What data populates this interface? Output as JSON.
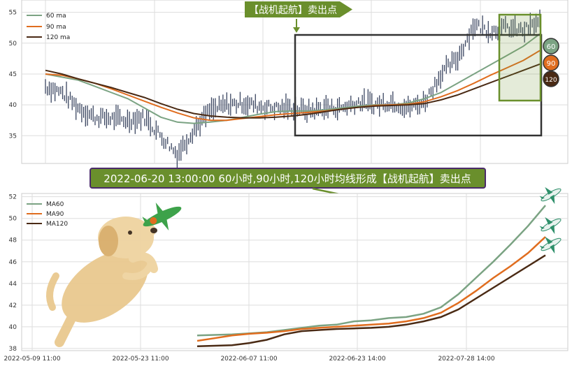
{
  "banner_top": "【战机起航】卖出点",
  "banner_mid": "2022-06-20 13:00:00 60小时,90小时,120小时均线形成【战机起航】卖出点",
  "colors": {
    "ma60": "#7ba383",
    "ma90": "#e06d1f",
    "ma120": "#4a2a14",
    "candle": "#3a4560",
    "green": "#6a8f2c",
    "box": "#333333"
  },
  "chart_data": [
    {
      "type": "line",
      "panel": "top",
      "legend": [
        "60 ma",
        "90 ma",
        "120 ma"
      ],
      "badges": [
        "60",
        "90",
        "120"
      ],
      "yticks": [
        35,
        40,
        45,
        50,
        55
      ],
      "ylim": [
        30.5,
        57
      ],
      "x": [
        0,
        25,
        50,
        75,
        100,
        125,
        150,
        175,
        200,
        225,
        250,
        275,
        300,
        325,
        350,
        375,
        400,
        425,
        450,
        475,
        500,
        525,
        550,
        575,
        600,
        625,
        650,
        675,
        700,
        725,
        750
      ],
      "series": [
        {
          "name": "60 ma",
          "values": [
            45.0,
            44.5,
            44.0,
            43.0,
            42.0,
            41.0,
            39.5,
            38.0,
            37.2,
            37.0,
            37.2,
            37.5,
            38.0,
            38.5,
            38.9,
            39.0,
            39.0,
            39.2,
            39.5,
            39.8,
            40.0,
            40.0,
            40.3,
            41.0,
            42.0,
            43.5,
            45.0,
            46.5,
            48.0,
            49.5,
            51.5
          ]
        },
        {
          "name": "90 ma",
          "values": [
            45.0,
            44.8,
            44.2,
            43.5,
            42.6,
            41.6,
            40.6,
            39.6,
            38.7,
            37.9,
            37.5,
            37.5,
            37.8,
            38.1,
            38.4,
            38.6,
            38.8,
            39.0,
            39.3,
            39.6,
            39.9,
            40.0,
            40.1,
            40.5,
            41.3,
            42.3,
            43.5,
            44.8,
            46.0,
            47.2,
            48.8
          ]
        },
        {
          "name": "120 ma",
          "values": [
            45.6,
            45.0,
            44.2,
            43.5,
            42.8,
            42.0,
            41.2,
            40.2,
            39.3,
            38.6,
            38.2,
            38.0,
            37.9,
            37.9,
            38.0,
            38.2,
            38.5,
            38.9,
            39.3,
            39.6,
            39.8,
            39.9,
            40.0,
            40.2,
            40.8,
            41.6,
            42.6,
            43.6,
            44.6,
            45.6,
            46.6
          ]
        },
        {
          "name": "candles",
          "values": [
            43.0,
            42.0,
            39.5,
            38.0,
            37.8,
            37.5,
            38.0,
            35.0,
            32.0,
            36.0,
            39.0,
            40.0,
            40.3,
            39.8,
            39.5,
            39.5,
            39.0,
            39.5,
            39.5,
            40.5,
            40.0,
            40.5,
            39.5,
            40.5,
            45.0,
            47.5,
            53.0,
            52.0,
            52.5,
            52.0,
            53.5
          ]
        }
      ]
    },
    {
      "type": "line",
      "panel": "bottom",
      "legend": [
        "MA60",
        "MA90",
        "MA120"
      ],
      "yticks": [
        38,
        40,
        42,
        44,
        46,
        48,
        50,
        52
      ],
      "ylim": [
        37.8,
        52.3
      ],
      "xticks": [
        "2022-05-09 11:00",
        "2022-05-23 11:00",
        "2022-06-07 11:00",
        "2022-06-23 14:00",
        "2022-07-28 14:00"
      ],
      "x": [
        0,
        25,
        50,
        75,
        100,
        125,
        150,
        175,
        200,
        225,
        250,
        275,
        300,
        325,
        350,
        375,
        400,
        425,
        450,
        475,
        500
      ],
      "series": [
        {
          "name": "MA60",
          "values": [
            39.2,
            39.25,
            39.3,
            39.4,
            39.5,
            39.7,
            39.9,
            40.1,
            40.2,
            40.5,
            40.6,
            40.8,
            40.9,
            41.2,
            41.8,
            43.0,
            44.5,
            46.0,
            47.6,
            49.3,
            51.2
          ]
        },
        {
          "name": "MA90",
          "values": [
            38.7,
            38.95,
            39.2,
            39.35,
            39.45,
            39.6,
            39.8,
            39.9,
            40.0,
            40.1,
            40.2,
            40.3,
            40.5,
            40.8,
            41.3,
            42.2,
            43.3,
            44.5,
            45.6,
            46.8,
            48.3
          ]
        },
        {
          "name": "MA120",
          "values": [
            38.2,
            38.25,
            38.3,
            38.5,
            38.8,
            39.3,
            39.6,
            39.7,
            39.8,
            39.85,
            39.9,
            40.0,
            40.2,
            40.5,
            40.9,
            41.6,
            42.6,
            43.6,
            44.6,
            45.6,
            46.6
          ]
        }
      ]
    }
  ]
}
